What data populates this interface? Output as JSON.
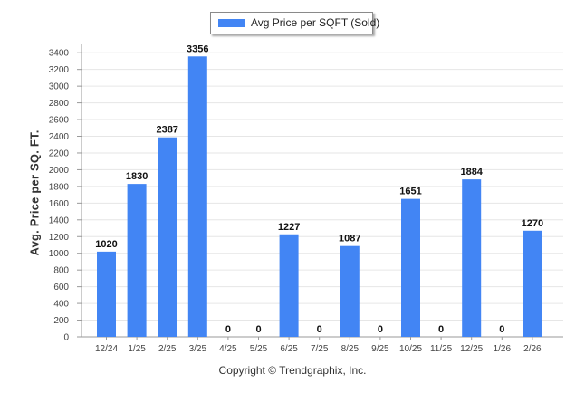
{
  "chart_data": {
    "type": "bar",
    "categories": [
      "12/24",
      "1/25",
      "2/25",
      "3/25",
      "4/25",
      "5/25",
      "6/25",
      "7/25",
      "8/25",
      "9/25",
      "10/25",
      "11/25",
      "12/25",
      "1/26",
      "2/26"
    ],
    "series": [
      {
        "name": "Avg Price per SQFT (Sold)",
        "values": [
          1020,
          1830,
          2387,
          3356,
          0,
          0,
          1227,
          0,
          1087,
          0,
          1651,
          0,
          1884,
          0,
          1270
        ],
        "color": "#4285f4"
      }
    ],
    "ylabel": "Avg. Price per SQ. FT.",
    "xlabel": "",
    "ylim": [
      0,
      3500
    ],
    "yticks": [
      0,
      200,
      400,
      600,
      800,
      1000,
      1200,
      1400,
      1600,
      1800,
      2000,
      2200,
      2400,
      2600,
      2800,
      3000,
      3200,
      3400
    ],
    "grid": true,
    "legend_position": "top-center",
    "data_labels": true
  },
  "footer": {
    "copyright": "Copyright © Trendgraphix, Inc."
  },
  "colors": {
    "bar": "#4285f4",
    "grid": "#e6e6e6",
    "axis": "#999999"
  }
}
